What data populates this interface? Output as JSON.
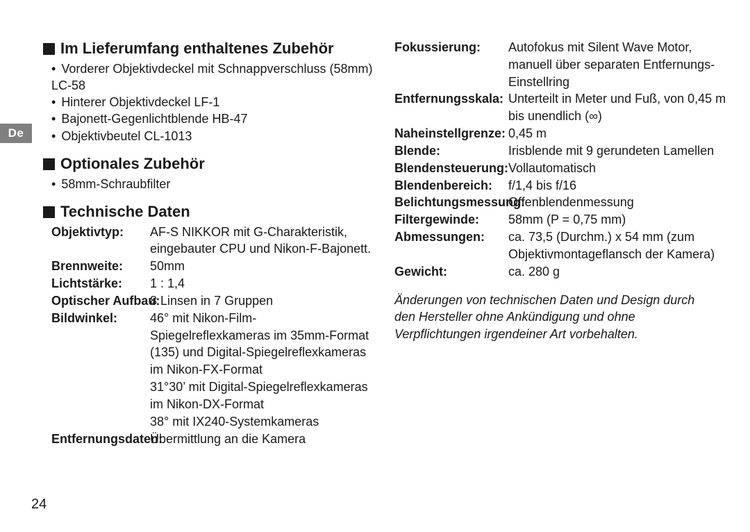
{
  "lang_tab": "De",
  "page_number": "24",
  "sections": {
    "supplied": {
      "title": "Im Lieferumfang enthaltenes Zubehör",
      "items": [
        "Vorderer Objektivdeckel mit Schnappverschluss (58mm) LC-58",
        "Hinterer Objektivdeckel LF-1",
        "Bajonett-Gegenlichtblende HB-47",
        "Objektivbeutel CL-1013"
      ]
    },
    "optional": {
      "title": "Optionales Zubehör",
      "items": [
        "58mm-Schraubfilter"
      ]
    },
    "tech": {
      "title": "Technische Daten"
    }
  },
  "specs_left": [
    {
      "label": "Objektivtyp:",
      "value": "AF-S NIKKOR mit G-Charakteristik, eingebauter CPU und Nikon-F-Bajonett."
    },
    {
      "label": "Brennweite:",
      "value": "50mm"
    },
    {
      "label": "Lichtstärke:",
      "value": "1 : 1,4"
    },
    {
      "label": "Optischer Aufbau:",
      "value": "8 Linsen in 7 Gruppen"
    },
    {
      "label": "Bildwinkel:",
      "value": "46° mit Nikon-Film-Spiegelreflexkameras im 35mm-Format (135) und Digital-Spiegelreflexkameras im Nikon-FX-Format\n31°30’ mit Digital-Spiegelreflexkameras im Nikon-DX-Format\n38° mit IX240-Systemkameras"
    },
    {
      "label": "Entfernungsdaten:",
      "value": "Übermittlung an die Kamera"
    }
  ],
  "specs_right": [
    {
      "label": "Fokussierung:",
      "value": "Autofokus mit Silent Wave Motor, manuell über separaten Entfernungs-Einstellring"
    },
    {
      "label": "Entfernungsskala:",
      "value": "Unterteilt in Meter und Fuß, von 0,45 m bis unendlich (∞)"
    },
    {
      "label": "Naheinstellgrenze:",
      "value": "0,45 m"
    },
    {
      "label": "Blende:",
      "value": "Irisblende mit 9 gerundeten Lamellen"
    },
    {
      "label": "Blendensteuerung:",
      "value": "Vollautomatisch"
    },
    {
      "label": "Blendenbereich:",
      "value": "f/1,4 bis f/16"
    },
    {
      "label": "Belichtungsmessung:",
      "value": "Offenblendenmessung"
    },
    {
      "label": "Filtergewinde:",
      "value": "58mm (P = 0,75 mm)"
    },
    {
      "label": "Abmessungen:",
      "value": "ca. 73,5 (Durchm.) x 54 mm (zum Objektivmontageflansch der Kamera)"
    },
    {
      "label": "Gewicht:",
      "value": "ca. 280 g"
    }
  ],
  "footnote": "Änderungen von technischen Daten und Design durch den Hersteller ohne Ankündigung und ohne Verpflichtungen irgendeiner Art vorbehalten."
}
